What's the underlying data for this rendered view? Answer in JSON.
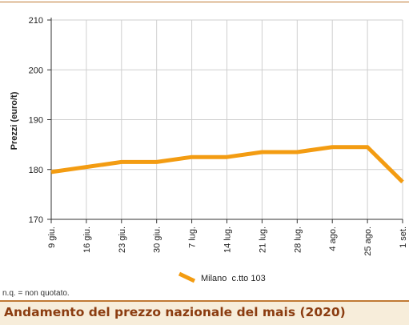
{
  "note": "n.q. = non quotato.",
  "caption": "Andamento del prezzo nazionale del mais (2020)",
  "colors": {
    "line": "#f39c12",
    "grid": "#cfcfcf",
    "rule": "#c07a34",
    "caption_text": "#8b3c10",
    "caption_bg": "#f7edda"
  },
  "chart_data": {
    "type": "line",
    "ylabel": "Prezzi (euro/t)",
    "xlabel": "",
    "ylim": [
      170,
      210
    ],
    "yticks": [
      "170",
      "180",
      "190",
      "200",
      "210"
    ],
    "grid": true,
    "legend_position": "bottom-center",
    "categories": [
      "9 giu.",
      "16 giu.",
      "23 giu.",
      "30 giu.",
      "7 lug.",
      "14 lug.",
      "21 lug.",
      "28 lug.",
      "4 ago.",
      "25 ago.",
      "1 set."
    ],
    "series": [
      {
        "name": "Milano  c.tto 103",
        "values": [
          179.5,
          180.5,
          181.5,
          181.5,
          182.5,
          182.5,
          183.5,
          183.5,
          184.5,
          184.5,
          177.5
        ]
      }
    ]
  }
}
